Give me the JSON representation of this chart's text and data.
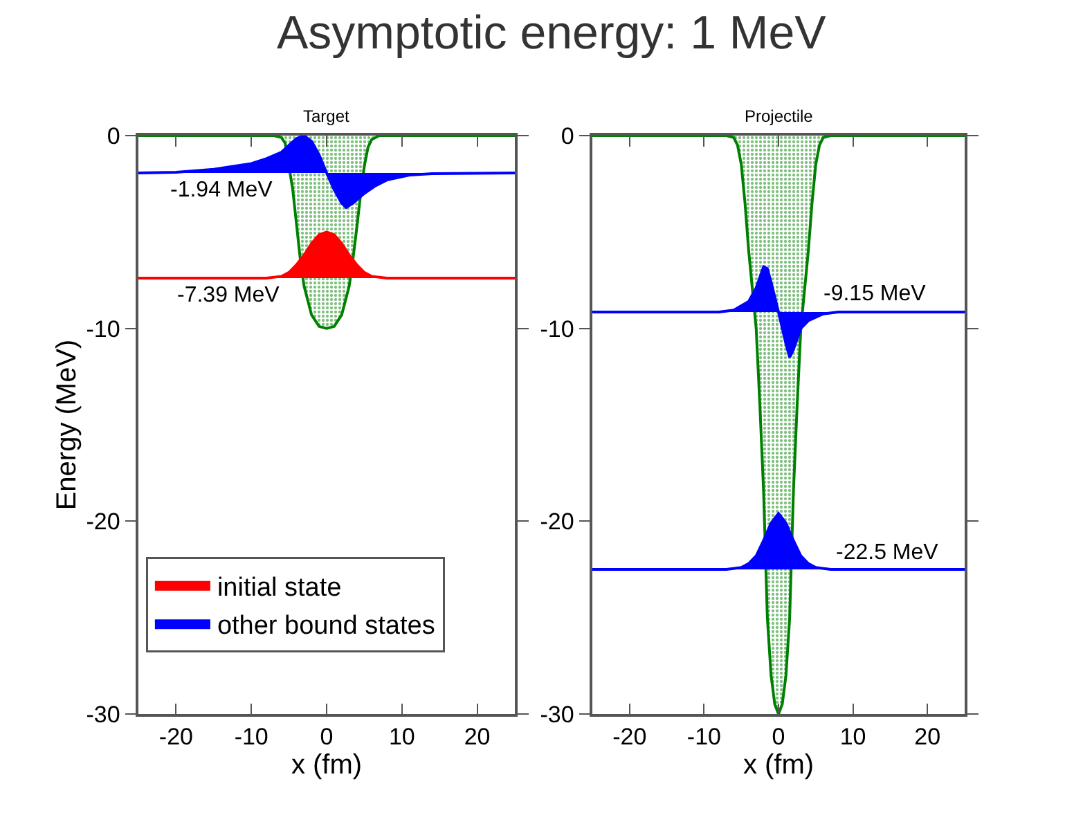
{
  "chart_data": [
    {
      "type": "area",
      "title": "Asymptotic energy: 1 MeV",
      "subtitle": "Target",
      "xlabel": "x (fm)",
      "ylabel": "Energy (MeV)",
      "xlim": [
        -25,
        25
      ],
      "ylim": [
        -30,
        0
      ],
      "xticks": [
        -20,
        -10,
        0,
        10,
        20
      ],
      "yticks": [
        -30,
        -20,
        -10,
        0
      ],
      "legend": "bottom left",
      "series": [
        {
          "color": "#008000",
          "x": [
            -25,
            -7,
            -6,
            -5.5,
            -5,
            -4.5,
            -4,
            -3.5,
            -3,
            -2,
            -1,
            0,
            1,
            2,
            3,
            3.5,
            4,
            4.5,
            5,
            5.5,
            6,
            7,
            25
          ],
          "values": [
            0,
            0,
            -0.1,
            -0.4,
            null,
            -2.8,
            -4.6,
            -6.4,
            -7.8,
            -9.3,
            -9.9,
            -10,
            -9.9,
            -9.3,
            -7.8,
            -6.4,
            -4.8,
            -3.1,
            -1.6,
            -0.6,
            -0.2,
            0,
            0
          ]
        },
        {
          "name": "initial state",
          "color": "#ff0000",
          "x": [
            -25,
            -8,
            -6,
            -5,
            -4,
            -3,
            -2,
            -1,
            0,
            1,
            2,
            3,
            4,
            5,
            6,
            8,
            25
          ],
          "values": [
            -7.39,
            -7.39,
            -7.3,
            -7.1,
            -6.7,
            -6.2,
            -5.6,
            -5.15,
            -5.0,
            -5.15,
            -5.6,
            -6.2,
            -6.7,
            -7.1,
            -7.3,
            -7.39,
            -7.39
          ]
        },
        {
          "name": "other bound states",
          "color": "#0000ff",
          "x": [
            -25,
            -20,
            -15,
            -10,
            -8,
            -6,
            -5,
            -4,
            -3,
            -2,
            -1,
            0,
            1,
            2,
            2.6,
            3.5,
            5,
            6.5,
            8,
            11,
            14,
            25
          ],
          "values": [
            -1.94,
            -1.9,
            -1.75,
            -1.45,
            -1.2,
            -0.86,
            -0.5,
            -0.15,
            0,
            -0.3,
            -1.0,
            -1.94,
            -2.8,
            -3.5,
            -3.73,
            -3.5,
            -3.0,
            -2.6,
            -2.3,
            -2.05,
            -1.97,
            -1.94
          ]
        }
      ],
      "annotations": [
        {
          "text": "-1.94 MeV",
          "x": -14,
          "y": -1.94
        },
        {
          "text": "-7.39 MeV",
          "x": -13,
          "y": -7.39
        }
      ]
    },
    {
      "type": "area",
      "subtitle": "Projectile",
      "xlabel": "x (fm)",
      "xlim": [
        -25,
        25
      ],
      "ylim": [
        -30,
        0
      ],
      "xticks": [
        -20,
        -10,
        0,
        10,
        20
      ],
      "yticks": [
        -30,
        -20,
        -10,
        0
      ],
      "series": [
        {
          "color": "#008000",
          "x": [
            -25,
            -7,
            -6,
            -5.5,
            -5,
            -4.5,
            -4,
            -3.5,
            -3,
            -2.5,
            -2,
            -1.5,
            -1,
            -0.5,
            0,
            0.5,
            1,
            1.5,
            2,
            2.5,
            3,
            3.5,
            4,
            4.5,
            5,
            5.5,
            6,
            7,
            25
          ],
          "values": [
            0,
            0,
            -0.1,
            -0.5,
            -1.5,
            -3.5,
            -6,
            -8,
            -10,
            -14,
            -18.5,
            -25,
            -28,
            -29.5,
            -30,
            -29.5,
            -28,
            -25,
            -18.5,
            -14,
            -10,
            -8,
            -6,
            -3.5,
            -1.5,
            -0.5,
            -0.1,
            0,
            0
          ]
        },
        {
          "color": "#0000ff",
          "x": [
            -25,
            -8,
            -6,
            -4,
            -3,
            -2,
            -1.5,
            -1,
            0,
            1,
            1.5,
            2,
            3,
            4,
            6,
            8,
            25
          ],
          "values": [
            -9.15,
            -9.15,
            -9.05,
            -8.6,
            -7.9,
            -6.8,
            -6.9,
            -7.6,
            -9.15,
            -10.8,
            -11.5,
            -11.1,
            -10.0,
            -9.6,
            -9.25,
            -9.15,
            -9.15
          ]
        },
        {
          "color": "#0000ff",
          "x": [
            -25,
            -7,
            -5,
            -4,
            -3,
            -2,
            -1,
            0,
            1,
            2,
            3,
            4,
            5,
            7,
            25
          ],
          "values": [
            -22.5,
            -22.5,
            -22.4,
            -22.2,
            -21.8,
            -21.0,
            -20.1,
            -19.6,
            -20.1,
            -21.0,
            -21.8,
            -22.2,
            -22.4,
            -22.5,
            -22.5
          ]
        }
      ],
      "annotations": [
        {
          "text": "-9.15 MeV",
          "x": 13,
          "y": -9.15
        },
        {
          "text": "-22.5 MeV",
          "x": 14.5,
          "y": -22.5
        }
      ]
    }
  ]
}
